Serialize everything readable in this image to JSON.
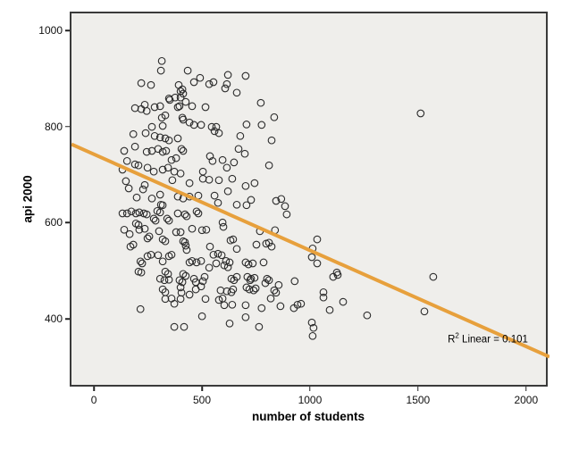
{
  "figure": {
    "background": "#ffffff",
    "plot_background": "#efeeeb",
    "frame_color": "#3a3a3a"
  },
  "chart_data": {
    "type": "scatter",
    "title": "",
    "xlabel": "number of students",
    "ylabel": "api 2000",
    "xlim": [
      -112,
      2100
    ],
    "ylim": [
      259,
      1039
    ],
    "x_ticks": [
      0,
      500,
      1000,
      1500,
      2000
    ],
    "y_ticks": [
      400,
      600,
      800,
      1000
    ],
    "grid": false,
    "legend_position": "none",
    "marker": {
      "shape": "open-circle",
      "stroke_color": "#2b2b2b",
      "radius": 3.8
    },
    "fit_line": {
      "type": "linear",
      "intercept": 744.3,
      "slope": -0.1999,
      "r_squared": 0.101,
      "color": "#e7a03c",
      "width": 4
    },
    "annotation": {
      "prefix": "R",
      "superscript": "2",
      "rest": " Linear = 0.101"
    },
    "points": [
      [
        306,
        940
      ],
      [
        302,
        920
      ],
      [
        426,
        920
      ],
      [
        211,
        894
      ],
      [
        256,
        890
      ],
      [
        384,
        890
      ],
      [
        401,
        881
      ],
      [
        455,
        896
      ],
      [
        483,
        905
      ],
      [
        525,
        892
      ],
      [
        545,
        896
      ],
      [
        612,
        911
      ],
      [
        607,
        892
      ],
      [
        599,
        883
      ],
      [
        653,
        874
      ],
      [
        393,
        877
      ],
      [
        405,
        872
      ],
      [
        339,
        862
      ],
      [
        368,
        864
      ],
      [
        393,
        864
      ],
      [
        417,
        855
      ],
      [
        446,
        846
      ],
      [
        508,
        844
      ],
      [
        182,
        842
      ],
      [
        211,
        840
      ],
      [
        227,
        849
      ],
      [
        236,
        836
      ],
      [
        273,
        844
      ],
      [
        298,
        846
      ],
      [
        306,
        822
      ],
      [
        322,
        827
      ],
      [
        343,
        859
      ],
      [
        380,
        844
      ],
      [
        388,
        846
      ],
      [
        401,
        822
      ],
      [
        405,
        818
      ],
      [
        434,
        812
      ],
      [
        455,
        807
      ],
      [
        488,
        807
      ],
      [
        537,
        803
      ],
      [
        558,
        803
      ],
      [
        570,
        790
      ],
      [
        550,
        794
      ],
      [
        260,
        803
      ],
      [
        310,
        805
      ],
      [
        174,
        788
      ],
      [
        231,
        790
      ],
      [
        273,
        784
      ],
      [
        298,
        781
      ],
      [
        322,
        779
      ],
      [
        339,
        775
      ],
      [
        380,
        779
      ],
      [
        397,
        757
      ],
      [
        405,
        753
      ],
      [
        182,
        762
      ],
      [
        132,
        753
      ],
      [
        236,
        751
      ],
      [
        260,
        753
      ],
      [
        289,
        757
      ],
      [
        310,
        751
      ],
      [
        326,
        753
      ],
      [
        351,
        734
      ],
      [
        372,
        738
      ],
      [
        145,
        732
      ],
      [
        182,
        725
      ],
      [
        198,
        723
      ],
      [
        240,
        718
      ],
      [
        269,
        710
      ],
      [
        310,
        714
      ],
      [
        335,
        718
      ],
      [
        364,
        710
      ],
      [
        393,
        706
      ],
      [
        496,
        710
      ],
      [
        529,
        742
      ],
      [
        541,
        732
      ],
      [
        587,
        734
      ],
      [
        607,
        718
      ],
      [
        640,
        729
      ],
      [
        669,
        784
      ],
      [
        661,
        757
      ],
      [
        694,
        909
      ],
      [
        764,
        853
      ],
      [
        826,
        823
      ],
      [
        698,
        808
      ],
      [
        768,
        807
      ],
      [
        814,
        775
      ],
      [
        690,
        747
      ],
      [
        802,
        723
      ],
      [
        124,
        714
      ],
      [
        140,
        690
      ],
      [
        153,
        675
      ],
      [
        190,
        656
      ],
      [
        227,
        682
      ],
      [
        219,
        673
      ],
      [
        260,
        654
      ],
      [
        298,
        662
      ],
      [
        302,
        641
      ],
      [
        355,
        692
      ],
      [
        380,
        658
      ],
      [
        405,
        654
      ],
      [
        434,
        686
      ],
      [
        496,
        695
      ],
      [
        525,
        693
      ],
      [
        570,
        692
      ],
      [
        632,
        695
      ],
      [
        550,
        660
      ],
      [
        475,
        660
      ],
      [
        434,
        658
      ],
      [
        566,
        645
      ],
      [
        612,
        669
      ],
      [
        653,
        641
      ],
      [
        145,
        623
      ],
      [
        165,
        627
      ],
      [
        186,
        623
      ],
      [
        202,
        625
      ],
      [
        223,
        623
      ],
      [
        236,
        621
      ],
      [
        285,
        628
      ],
      [
        298,
        625
      ],
      [
        310,
        640
      ],
      [
        331,
        612
      ],
      [
        339,
        608
      ],
      [
        380,
        623
      ],
      [
        413,
        621
      ],
      [
        421,
        617
      ],
      [
        467,
        627
      ],
      [
        475,
        623
      ],
      [
        132,
        589
      ],
      [
        157,
        580
      ],
      [
        186,
        602
      ],
      [
        198,
        599
      ],
      [
        202,
        589
      ],
      [
        227,
        591
      ],
      [
        240,
        571
      ],
      [
        248,
        575
      ],
      [
        269,
        612
      ],
      [
        277,
        608
      ],
      [
        293,
        586
      ],
      [
        310,
        569
      ],
      [
        322,
        565
      ],
      [
        339,
        534
      ],
      [
        351,
        537
      ],
      [
        372,
        584
      ],
      [
        393,
        584
      ],
      [
        405,
        565
      ],
      [
        413,
        563
      ],
      [
        417,
        556
      ],
      [
        421,
        547
      ],
      [
        446,
        591
      ],
      [
        492,
        588
      ],
      [
        512,
        589
      ],
      [
        446,
        524
      ],
      [
        467,
        521
      ],
      [
        488,
        524
      ],
      [
        529,
        554
      ],
      [
        545,
        537
      ],
      [
        566,
        539
      ],
      [
        583,
        536
      ],
      [
        603,
        524
      ],
      [
        620,
        521
      ],
      [
        587,
        604
      ],
      [
        591,
        595
      ],
      [
        624,
        567
      ],
      [
        636,
        569
      ],
      [
        653,
        549
      ],
      [
        161,
        554
      ],
      [
        174,
        558
      ],
      [
        207,
        523
      ],
      [
        215,
        519
      ],
      [
        198,
        502
      ],
      [
        211,
        500
      ],
      [
        240,
        534
      ],
      [
        256,
        537
      ],
      [
        289,
        536
      ],
      [
        310,
        523
      ],
      [
        322,
        502
      ],
      [
        335,
        497
      ],
      [
        124,
        623
      ],
      [
        694,
        680
      ],
      [
        735,
        686
      ],
      [
        698,
        640
      ],
      [
        719,
        651
      ],
      [
        835,
        649
      ],
      [
        859,
        653
      ],
      [
        876,
        638
      ],
      [
        884,
        621
      ],
      [
        760,
        586
      ],
      [
        789,
        560
      ],
      [
        802,
        562
      ],
      [
        814,
        554
      ],
      [
        830,
        588
      ],
      [
        744,
        558
      ],
      [
        1025,
        569
      ],
      [
        1004,
        550
      ],
      [
        1000,
        532
      ],
      [
        1025,
        519
      ],
      [
        694,
        521
      ],
      [
        707,
        517
      ],
      [
        727,
        519
      ],
      [
        777,
        521
      ],
      [
        298,
        487
      ],
      [
        318,
        484
      ],
      [
        339,
        485
      ],
      [
        388,
        484
      ],
      [
        401,
        480
      ],
      [
        405,
        497
      ],
      [
        417,
        493
      ],
      [
        434,
        521
      ],
      [
        455,
        487
      ],
      [
        463,
        480
      ],
      [
        488,
        471
      ],
      [
        504,
        491
      ],
      [
        525,
        510
      ],
      [
        558,
        519
      ],
      [
        595,
        515
      ],
      [
        612,
        511
      ],
      [
        628,
        487
      ],
      [
        640,
        484
      ],
      [
        653,
        491
      ],
      [
        397,
        458
      ],
      [
        434,
        454
      ],
      [
        463,
        465
      ],
      [
        496,
        482
      ],
      [
        393,
        469
      ],
      [
        310,
        465
      ],
      [
        322,
        459
      ],
      [
        578,
        463
      ],
      [
        607,
        461
      ],
      [
        628,
        459
      ],
      [
        636,
        465
      ],
      [
        702,
        491
      ],
      [
        719,
        487
      ],
      [
        735,
        489
      ],
      [
        715,
        484
      ],
      [
        698,
        469
      ],
      [
        711,
        465
      ],
      [
        731,
        463
      ],
      [
        740,
        467
      ],
      [
        793,
        487
      ],
      [
        802,
        484
      ],
      [
        785,
        478
      ],
      [
        847,
        474
      ],
      [
        826,
        463
      ],
      [
        835,
        458
      ],
      [
        921,
        482
      ],
      [
        1116,
        500
      ],
      [
        1120,
        495
      ],
      [
        1099,
        491
      ],
      [
        1054,
        459
      ],
      [
        207,
        424
      ],
      [
        322,
        445
      ],
      [
        351,
        446
      ],
      [
        364,
        435
      ],
      [
        393,
        445
      ],
      [
        508,
        445
      ],
      [
        570,
        443
      ],
      [
        587,
        446
      ],
      [
        595,
        432
      ],
      [
        632,
        433
      ],
      [
        492,
        409
      ],
      [
        620,
        394
      ],
      [
        364,
        387
      ],
      [
        409,
        387
      ],
      [
        694,
        432
      ],
      [
        768,
        426
      ],
      [
        694,
        407
      ],
      [
        756,
        387
      ],
      [
        855,
        430
      ],
      [
        917,
        426
      ],
      [
        934,
        433
      ],
      [
        950,
        435
      ],
      [
        1083,
        422
      ],
      [
        1145,
        439
      ],
      [
        1256,
        411
      ],
      [
        1000,
        396
      ],
      [
        1008,
        385
      ],
      [
        1004,
        368
      ],
      [
        810,
        446
      ],
      [
        1054,
        448
      ],
      [
        1504,
        831
      ],
      [
        1562,
        491
      ],
      [
        1521,
        419
      ]
    ]
  }
}
